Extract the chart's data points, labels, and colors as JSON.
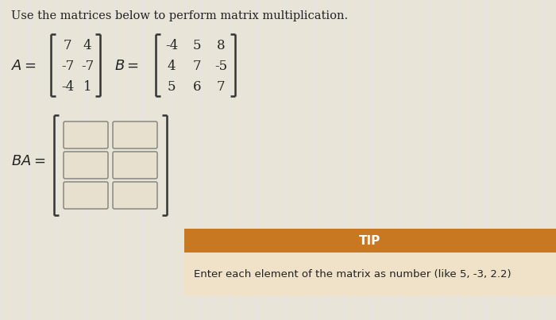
{
  "background_color": "#d8d5cc",
  "title_text": "Use the matrices below to perform matrix multiplication.",
  "matrix_A": [
    [
      7,
      4
    ],
    [
      -7,
      -7
    ],
    [
      -4,
      1
    ]
  ],
  "matrix_B": [
    [
      -4,
      5,
      8
    ],
    [
      4,
      7,
      -5
    ],
    [
      5,
      6,
      7
    ]
  ],
  "tip_header": "TIP",
  "tip_body": "Enter each element of the matrix as number (like 5, -3, 2.2)",
  "tip_header_color": "#c87820",
  "tip_body_color": "#f0e2c8",
  "tip_header_text_color": "#ffffff",
  "tip_body_text_color": "#222222",
  "bracket_color": "#333333",
  "text_color": "#222222",
  "box_facecolor": "#e8e0ce",
  "box_edgecolor": "#888880"
}
